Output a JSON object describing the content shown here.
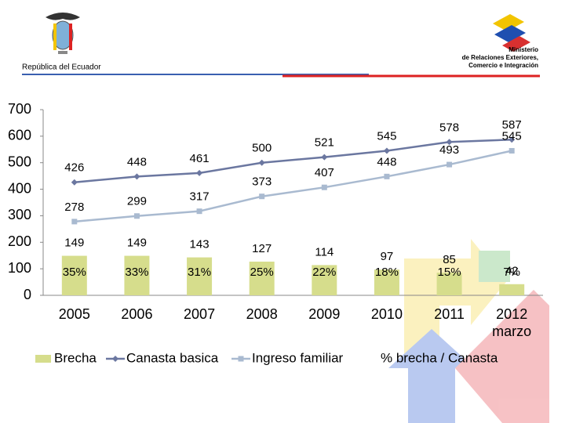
{
  "header": {
    "left": "República del Ecuador",
    "right_lines": [
      "Ministerio",
      "de Relaciones Exteriores,",
      "Comercio e Integración"
    ]
  },
  "chart_data": {
    "type": "combo",
    "categories": [
      "2005",
      "2006",
      "2007",
      "2008",
      "2009",
      "2010",
      "2011",
      "2012 marzo"
    ],
    "ylim": [
      0,
      700
    ],
    "yticks": [
      0,
      100,
      200,
      300,
      400,
      500,
      600,
      700
    ],
    "series": [
      {
        "name": "Brecha",
        "type": "bar",
        "color": "#d6dd8c",
        "values": [
          149,
          149,
          143,
          127,
          114,
          97,
          85,
          42
        ]
      },
      {
        "name": "Canasta basica",
        "type": "line",
        "marker": "diamond",
        "color": "#6b77a0",
        "values": [
          426,
          448,
          461,
          500,
          521,
          545,
          578,
          587
        ]
      },
      {
        "name": "Ingreso familiar",
        "type": "line",
        "marker": "square",
        "color": "#a9bad0",
        "values": [
          278,
          299,
          317,
          373,
          407,
          448,
          493,
          545
        ]
      },
      {
        "name": "% brecha / Canasta",
        "type": "label",
        "color": "#000000",
        "values": [
          35,
          33,
          31,
          25,
          22,
          18,
          15,
          7
        ],
        "value_labels": [
          "35%",
          "33%",
          "31%",
          "25%",
          "22%",
          "18%",
          "15%",
          "7%"
        ]
      }
    ]
  }
}
